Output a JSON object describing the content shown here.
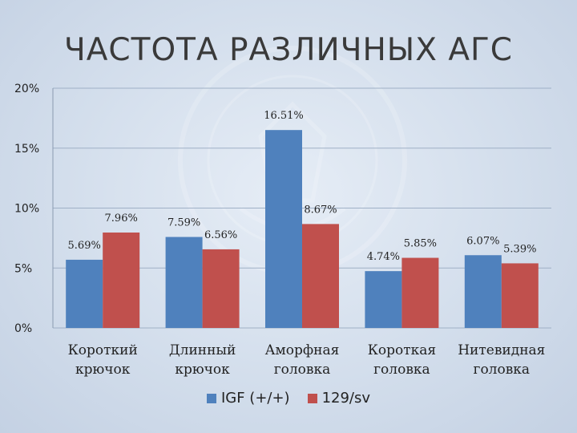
{
  "colors": {
    "igf": "#4f81bd",
    "sv": "#c0504d",
    "grid": "#9fb0c6"
  },
  "chart_data": {
    "type": "bar",
    "title": "ЧАСТОТА РАЗЛИЧНЫХ АГС",
    "categories": [
      [
        "Короткий",
        "крючок"
      ],
      [
        "Длинный",
        "крючок"
      ],
      [
        "Аморфная",
        "головка"
      ],
      [
        "Короткая",
        "головка"
      ],
      [
        "Нитевидная",
        "головка"
      ]
    ],
    "series": [
      {
        "name": "IGF (+/+)",
        "values": [
          5.69,
          7.59,
          16.51,
          4.74,
          6.07
        ],
        "labels": [
          "5.69%",
          "7.59%",
          "16.51%",
          "4.74%",
          "6.07%"
        ]
      },
      {
        "name": "129/sv",
        "values": [
          7.96,
          6.56,
          8.67,
          5.85,
          5.39
        ],
        "labels": [
          "7.96%",
          "6.56%",
          "8.67%",
          "5.85%",
          "5.39%"
        ]
      }
    ],
    "ylim": [
      0,
      20
    ],
    "yticks": [
      0,
      5,
      10,
      15,
      20
    ],
    "ytick_labels": [
      "0%",
      "5%",
      "10%",
      "15%",
      "20%"
    ],
    "grid": true,
    "legend": "bottom"
  }
}
